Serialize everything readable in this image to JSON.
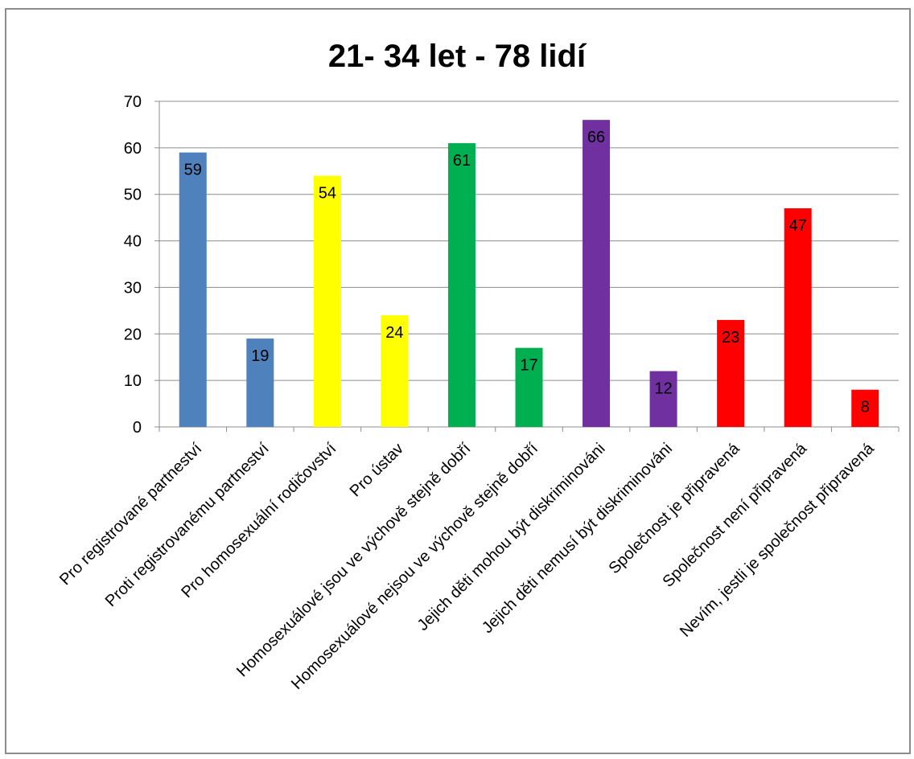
{
  "chart_data": {
    "type": "bar",
    "title": "21- 34 let - 78 lidí",
    "xlabel": "",
    "ylabel": "",
    "ylim": [
      0,
      70
    ],
    "yticks": [
      0,
      10,
      20,
      30,
      40,
      50,
      60,
      70
    ],
    "grid": true,
    "legend": "none",
    "categories": [
      "Pro registrované partneství",
      "Proti registrovanému partneství",
      "Pro homosexuální rodičovství",
      "Pro ústav",
      "Homosexuálové jsou ve výchově stejně dobří",
      "Homosexuálové nejsou ve výchově stejně dobří",
      "Jejich děti mohou být diskriminováni",
      "Jejich děti nemusí být diskriminováni",
      "Společnost je připravená",
      "Společnost není připravená",
      "Nevím, jestli je společnost připravená"
    ],
    "values": [
      59,
      19,
      54,
      24,
      61,
      17,
      66,
      12,
      23,
      47,
      8
    ],
    "colors": [
      "#4f81bd",
      "#4f81bd",
      "#ffff00",
      "#ffff00",
      "#00b050",
      "#00b050",
      "#7030a0",
      "#7030a0",
      "#ff0000",
      "#ff0000",
      "#ff0000"
    ]
  }
}
